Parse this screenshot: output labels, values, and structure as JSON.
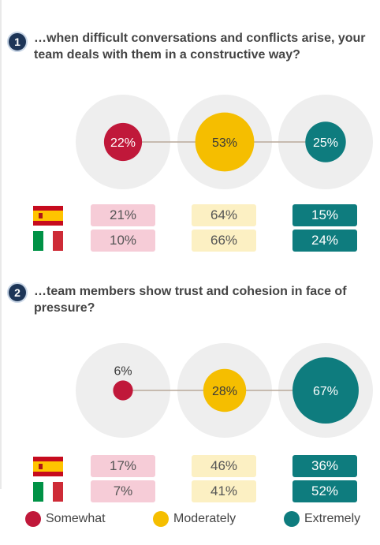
{
  "colors": {
    "somewhat": "#c0183a",
    "moderately": "#f5be00",
    "extremely": "#0e7c7e",
    "backdrop": "#eeeeee",
    "connector": "#b8a99a"
  },
  "chart_data": [
    {
      "type": "bubble",
      "number": "1",
      "question": "…when difficult conversations and conflicts arise, your team deals with them in a constructive way?",
      "categories": [
        "Somewhat",
        "Moderately",
        "Extremely"
      ],
      "values": [
        22,
        53,
        25
      ],
      "labels": [
        "22%",
        "53%",
        "25%"
      ],
      "countries": [
        {
          "flag": "spain-flag-icon",
          "values": [
            21,
            64,
            15
          ],
          "labels": [
            "21%",
            "64%",
            "15%"
          ]
        },
        {
          "flag": "italy-flag-icon",
          "values": [
            10,
            66,
            24
          ],
          "labels": [
            "10%",
            "66%",
            "24%"
          ]
        }
      ]
    },
    {
      "type": "bubble",
      "number": "2",
      "question": "…team members show trust and cohesion in face of pressure?",
      "categories": [
        "Somewhat",
        "Moderately",
        "Extremely"
      ],
      "values": [
        6,
        28,
        67
      ],
      "labels": [
        "6%",
        "28%",
        "67%"
      ],
      "countries": [
        {
          "flag": "spain-flag-icon",
          "values": [
            17,
            46,
            36
          ],
          "labels": [
            "17%",
            "46%",
            "36%"
          ]
        },
        {
          "flag": "italy-flag-icon",
          "values": [
            7,
            41,
            52
          ],
          "labels": [
            "7%",
            "41%",
            "52%"
          ]
        }
      ]
    }
  ],
  "legend": [
    {
      "key": "somewhat",
      "label": "Somewhat"
    },
    {
      "key": "moderately",
      "label": "Moderately"
    },
    {
      "key": "extremely",
      "label": "Extremely"
    }
  ]
}
